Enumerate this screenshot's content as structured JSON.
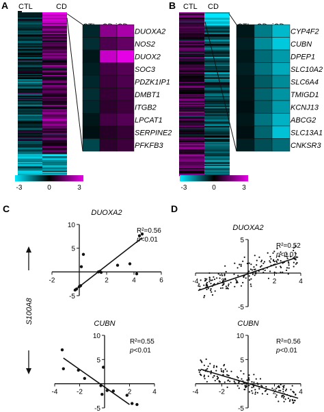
{
  "figure": {
    "panel_labels": [
      "A",
      "B",
      "C",
      "D"
    ],
    "colors": {
      "cyan": "#00e8ff",
      "black": "#000000",
      "magenta": "#e600e6",
      "line": "#111111"
    },
    "colorbar": {
      "ticks": [
        "-3",
        "0",
        "3"
      ],
      "min": -3,
      "max": 3
    },
    "y_axis_label": "S100A8"
  },
  "heatmaps": {
    "A": {
      "main_columns": [
        "CTL",
        "CD"
      ],
      "zoom_columns": [
        "CTL",
        "cCD",
        "iCD"
      ],
      "genes": [
        "DUOXA2",
        "NOS2",
        "DUOX2",
        "SOC3",
        "PDZK1IP1",
        "DMBT1",
        "ITGB2",
        "LPCAT1",
        "SERPINE2",
        "PFKFB3"
      ],
      "zoom_values": [
        [
          -0.5,
          1.8,
          2.2
        ],
        [
          -0.6,
          1.0,
          1.3
        ],
        [
          -0.3,
          2.6,
          3.0
        ],
        [
          -0.4,
          0.9,
          1.1
        ],
        [
          -0.5,
          0.8,
          1.0
        ],
        [
          -0.6,
          0.7,
          0.9
        ],
        [
          -0.5,
          0.6,
          0.8
        ],
        [
          -0.3,
          0.9,
          1.1
        ],
        [
          -0.2,
          0.5,
          0.7
        ],
        [
          -0.9,
          0.6,
          0.8
        ]
      ]
    },
    "B": {
      "main_columns": [
        "CTL",
        "CD"
      ],
      "zoom_columns": [
        "CTL",
        "cCD",
        "iCD"
      ],
      "genes": [
        "CYP4F2",
        "CUBN",
        "DPEP1",
        "SLC10A2",
        "SLC6A4",
        "TMIGD1",
        "KCNJ13",
        "ABCG2",
        "SLC13A1",
        "CNKSR3"
      ],
      "zoom_values": [
        [
          -0.3,
          -1.6,
          -2.4
        ],
        [
          -0.4,
          -1.8,
          -2.6
        ],
        [
          -0.3,
          -1.4,
          -2.0
        ],
        [
          -0.4,
          -1.5,
          -2.2
        ],
        [
          -0.3,
          -1.2,
          -1.8
        ],
        [
          -0.3,
          -1.3,
          -1.9
        ],
        [
          -0.2,
          -1.2,
          -2.0
        ],
        [
          -0.3,
          -1.5,
          -2.3
        ],
        [
          -0.2,
          -1.3,
          -2.5
        ],
        [
          -0.4,
          -1.0,
          -1.4
        ]
      ]
    }
  },
  "chart_data": [
    {
      "panel": "C",
      "type": "scatter",
      "title": "DUOXA2",
      "r2": "R²=0.56",
      "p_prefix": "p",
      "p_suffix": "<0.01",
      "xlim": [
        -2,
        6
      ],
      "ylim": [
        -5,
        10
      ],
      "xticks": [
        -2,
        2,
        4,
        6
      ],
      "yticks": [
        -5,
        5,
        10
      ],
      "points": [
        [
          -0.3,
          -3.8
        ],
        [
          -0.2,
          -3.6
        ],
        [
          0.0,
          -3.1
        ],
        [
          0.1,
          -2.9
        ],
        [
          0.15,
          1.1
        ],
        [
          0.3,
          3.7
        ],
        [
          1.4,
          0.0
        ],
        [
          1.5,
          0.1
        ],
        [
          1.6,
          -0.1
        ],
        [
          2.8,
          1.4
        ],
        [
          3.7,
          1.7
        ],
        [
          4.2,
          -0.4
        ],
        [
          4.4,
          7.6
        ],
        [
          4.6,
          8.0
        ]
      ],
      "fit": [
        [
          -0.4,
          -4.0
        ],
        [
          4.6,
          7.2
        ]
      ]
    },
    {
      "panel": "D",
      "type": "scatter",
      "title": "DUOXA2",
      "r2": "R²=0.52",
      "p_prefix": "p",
      "p_suffix": "<0.01",
      "xlim": [
        -4,
        4
      ],
      "ylim": [
        -5,
        5
      ],
      "xticks": [
        -4,
        -2,
        2,
        4
      ],
      "yticks": [
        -5,
        5
      ],
      "fit": [
        [
          -3.8,
          -2.6
        ],
        [
          3.8,
          2.4
        ]
      ]
    },
    {
      "panel": "C2",
      "type": "scatter",
      "title": "CUBN",
      "r2": "R²=0.55",
      "p_prefix": "p",
      "p_suffix": "<0.01",
      "xlim": [
        -4,
        4
      ],
      "ylim": [
        -5,
        10
      ],
      "xticks": [
        -4,
        -2,
        2,
        4
      ],
      "yticks": [
        -5,
        5,
        10
      ],
      "points": [
        [
          -3.4,
          7.0
        ],
        [
          -3.3,
          3.1
        ],
        [
          -2.1,
          2.8
        ],
        [
          -1.6,
          1.1
        ],
        [
          -0.3,
          -0.4
        ],
        [
          -0.1,
          3.4
        ],
        [
          -0.2,
          -2.2
        ],
        [
          0.2,
          -1.4
        ],
        [
          0.7,
          -1.5
        ],
        [
          1.8,
          -2.4
        ],
        [
          2.2,
          -4.1
        ],
        [
          2.6,
          -4.3
        ]
      ],
      "fit": [
        [
          -3.3,
          5.3
        ],
        [
          2.0,
          -4.3
        ]
      ]
    },
    {
      "panel": "D2",
      "type": "scatter",
      "title": "CUBN",
      "r2": "R²=0.56",
      "p_prefix": "p",
      "p_suffix": "<0.01",
      "xlim": [
        -4,
        4
      ],
      "ylim": [
        -5,
        10
      ],
      "xticks": [
        -4,
        -2,
        2,
        4
      ],
      "yticks": [
        -5,
        5,
        10
      ],
      "fit": [
        [
          -3.6,
          3.0
        ],
        [
          3.8,
          -3.0
        ]
      ]
    }
  ]
}
